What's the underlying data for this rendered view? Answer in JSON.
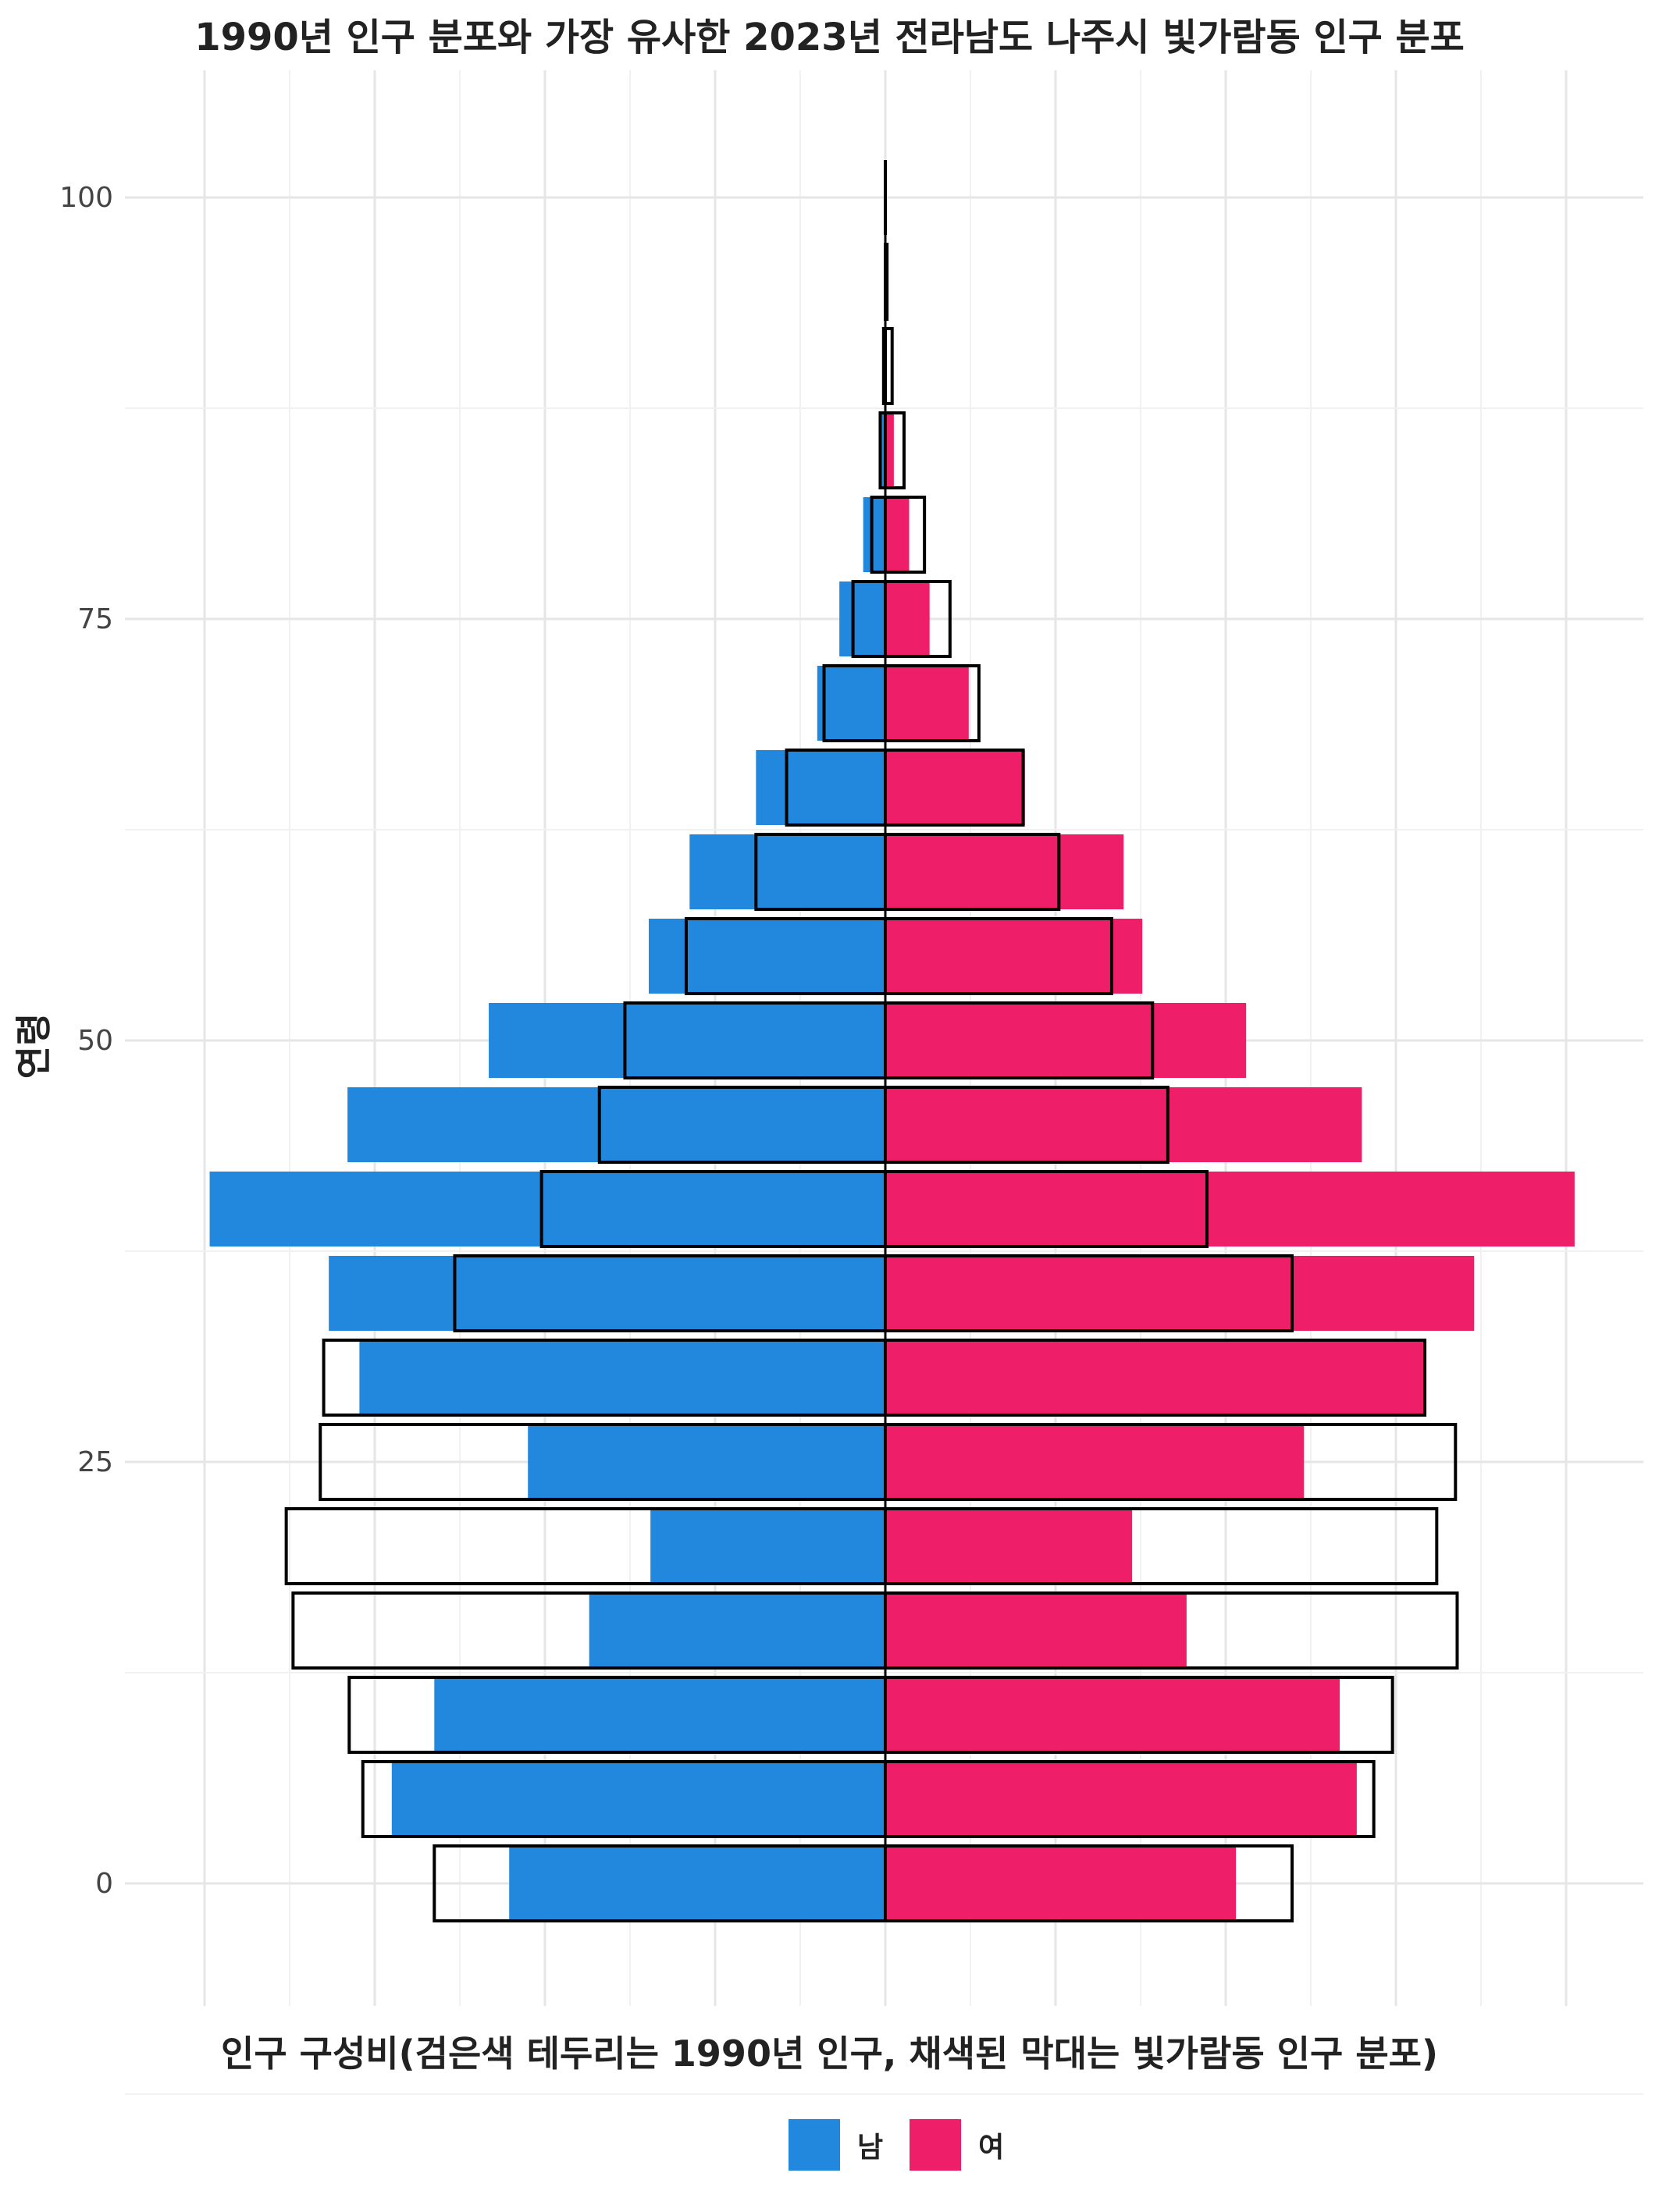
{
  "chart_data": {
    "type": "bar",
    "title": "1990년 인구 분포와 가장 유사한 2023년 전라남도 나주시 빛가람동 인구 분포",
    "xlabel": "인구 구성비(검은색 테두리는 1990년 인구, 채색된 막대는 빛가람동 인구 분포)",
    "ylabel": "연령",
    "y_ticks": [
      "0",
      "25",
      "50",
      "75",
      "100"
    ],
    "ylim": [
      -7,
      107
    ],
    "xlim": [
      -4.0,
      4.0
    ],
    "bin_width": 5,
    "age_bins": [
      0,
      5,
      10,
      15,
      20,
      25,
      30,
      35,
      40,
      45,
      50,
      55,
      60,
      65,
      70,
      75,
      80,
      85,
      90,
      95,
      100
    ],
    "series": [
      {
        "name": "남",
        "role": "빛가람동",
        "color": "#2188DE",
        "values": [
          2.21,
          2.9,
          2.65,
          1.74,
          1.38,
          2.1,
          3.09,
          3.27,
          3.97,
          3.16,
          2.33,
          1.39,
          1.15,
          0.76,
          0.4,
          0.27,
          0.13,
          0.03,
          0.0,
          0.0,
          0.0
        ]
      },
      {
        "name": "여",
        "role": "빛가람동",
        "color": "#EE1F68",
        "values": [
          2.06,
          2.77,
          2.67,
          1.77,
          1.45,
          2.46,
          3.17,
          3.46,
          4.05,
          2.8,
          2.12,
          1.51,
          1.4,
          0.82,
          0.49,
          0.26,
          0.14,
          0.05,
          0.0,
          0.0,
          0.0
        ]
      },
      {
        "name": "남",
        "role": "1990년",
        "color": "#000000",
        "values": [
          2.65,
          3.07,
          3.15,
          3.48,
          3.52,
          3.32,
          3.3,
          2.53,
          2.02,
          1.68,
          1.53,
          1.17,
          0.76,
          0.58,
          0.36,
          0.19,
          0.08,
          0.03,
          0.01,
          0.0,
          0.0
        ]
      },
      {
        "name": "여",
        "role": "1990년",
        "color": "#000000",
        "values": [
          2.39,
          2.87,
          2.98,
          3.36,
          3.24,
          3.35,
          3.17,
          2.39,
          1.89,
          1.66,
          1.57,
          1.33,
          1.02,
          0.81,
          0.55,
          0.38,
          0.23,
          0.11,
          0.04,
          0.01,
          0.0
        ]
      }
    ],
    "legend": {
      "position": "bottom",
      "entries": [
        {
          "label": "남",
          "color": "#2188DE"
        },
        {
          "label": "여",
          "color": "#EE1F68"
        }
      ]
    },
    "grid": true
  }
}
